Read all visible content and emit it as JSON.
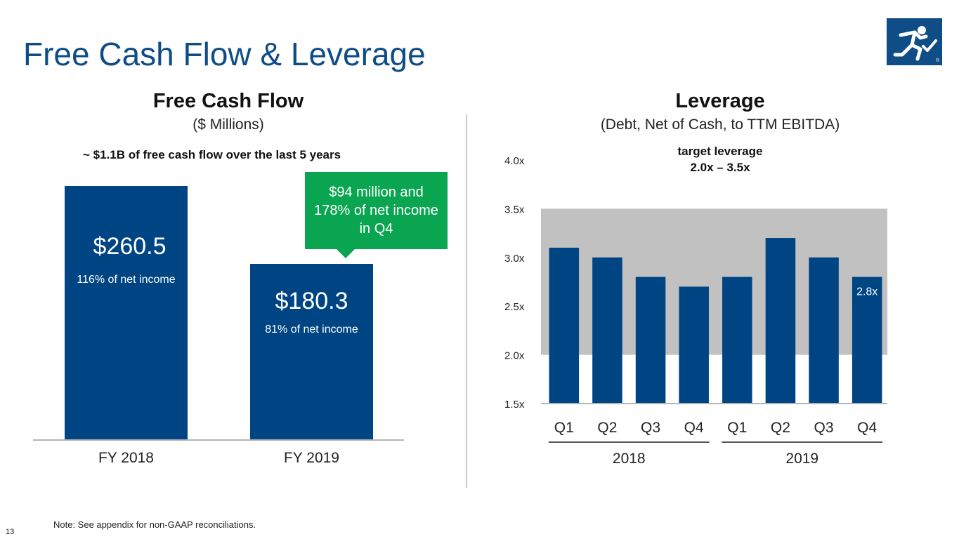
{
  "slide": {
    "title": "Free Cash Flow & Leverage",
    "page_number": "13",
    "footnote": "Note: See appendix for non-GAAP reconciliations.",
    "brand_color": "#0f4d86",
    "logo_label": "company-logo"
  },
  "left_panel": {
    "title": "Free Cash Flow",
    "subtitle": "($ Millions)",
    "summary": "~ $1.1B of free cash flow over the last 5 years",
    "callout": {
      "text": "$94 million and 178% of net income in Q4",
      "color": "#0aa550"
    },
    "bars": [
      {
        "label": "FY 2018",
        "value_label": "$260.5",
        "pct_label": "116% of net income"
      },
      {
        "label": "FY 2019",
        "value_label": "$180.3",
        "pct_label": "81% of net income"
      }
    ]
  },
  "right_panel": {
    "title": "Leverage",
    "subtitle": "(Debt, Net of Cash, to TTM EBITDA)",
    "target_label_line1": "target leverage",
    "target_label_line2": "2.0x – 3.5x",
    "year_labels": [
      "2018",
      "2019"
    ]
  },
  "chart_data": [
    {
      "type": "bar",
      "title": "Free Cash Flow",
      "ylabel": "$ Millions",
      "categories": [
        "FY 2018",
        "FY 2019"
      ],
      "values": [
        260.5,
        180.3
      ],
      "data_labels": [
        "$260.5",
        "$180.3"
      ],
      "annotations": [
        "116% of net income",
        "81% of net income"
      ],
      "bar_color": "#004583",
      "ylim": [
        0,
        260.5
      ]
    },
    {
      "type": "bar",
      "title": "Leverage",
      "subtitle": "(Debt, Net of Cash, to TTM EBITDA)",
      "categories": [
        "Q1",
        "Q2",
        "Q3",
        "Q4",
        "Q1",
        "Q2",
        "Q3",
        "Q4"
      ],
      "groups": [
        {
          "name": "2018",
          "categories": [
            "Q1",
            "Q2",
            "Q3",
            "Q4"
          ]
        },
        {
          "name": "2019",
          "categories": [
            "Q1",
            "Q2",
            "Q3",
            "Q4"
          ]
        }
      ],
      "values": [
        3.1,
        3.0,
        2.8,
        2.7,
        2.8,
        3.2,
        3.0,
        2.8
      ],
      "data_labels": [
        "",
        "",
        "",
        "",
        "",
        "",
        "",
        "2.8x"
      ],
      "ylim": [
        1.5,
        4.0
      ],
      "yticks": [
        "1.5x",
        "2.0x",
        "2.5x",
        "3.0x",
        "3.5x",
        "4.0x"
      ],
      "ytick_values": [
        1.5,
        2.0,
        2.5,
        3.0,
        3.5,
        4.0
      ],
      "target_band": [
        2.0,
        3.5
      ],
      "band_color": "#c1c1c1",
      "bar_color": "#004583"
    }
  ]
}
